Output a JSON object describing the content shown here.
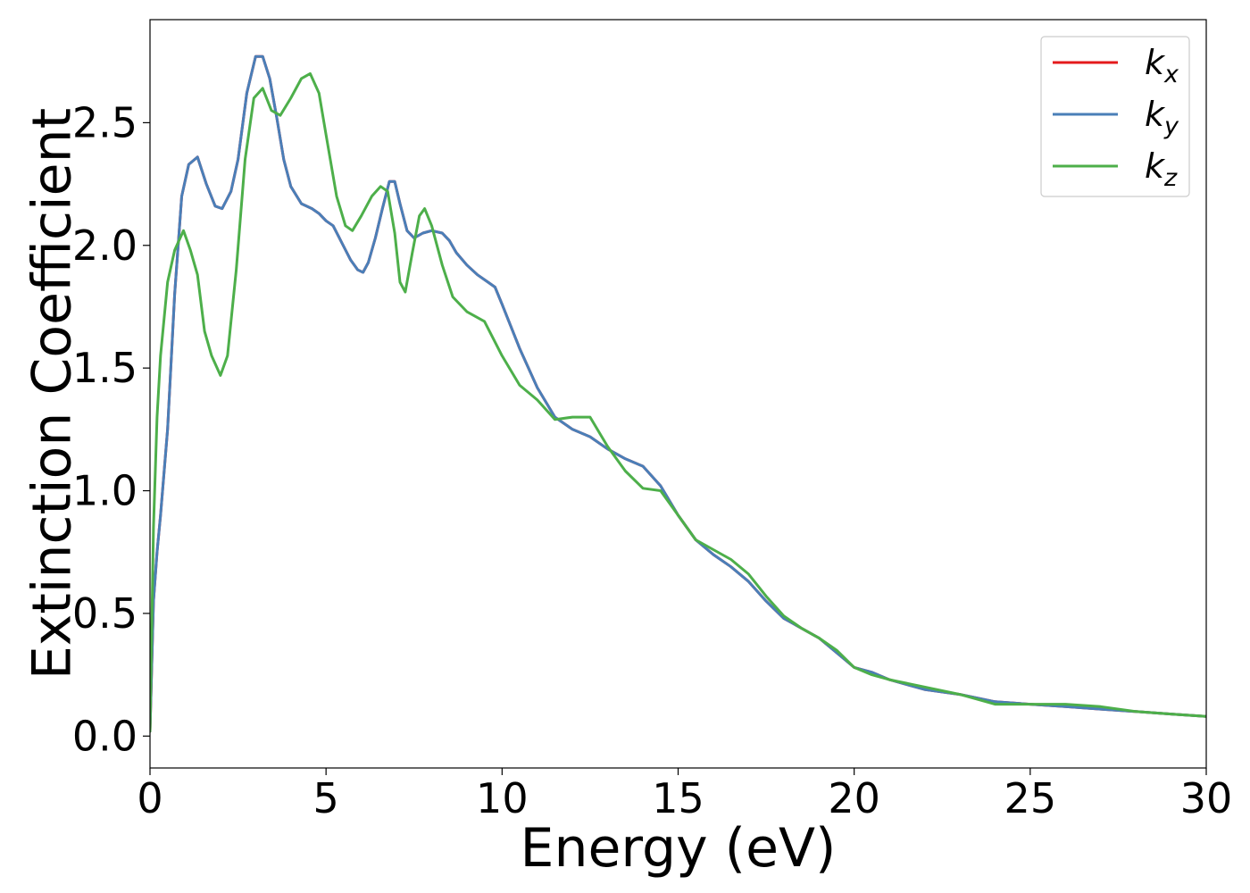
{
  "chart_data": {
    "type": "line",
    "title": "",
    "xlabel": "Energy (eV)",
    "ylabel": "Extinction Coefficient",
    "xlim": [
      0,
      30
    ],
    "ylim": [
      -0.13,
      2.92
    ],
    "xticks": [
      0,
      5,
      10,
      15,
      20,
      25,
      30
    ],
    "xtick_labels": [
      "0",
      "5",
      "10",
      "15",
      "20",
      "25",
      "30"
    ],
    "yticks": [
      0.0,
      0.5,
      1.0,
      1.5,
      2.0,
      2.5
    ],
    "ytick_labels": [
      "0.0",
      "0.5",
      "1.0",
      "1.5",
      "2.0",
      "2.5"
    ],
    "grid": false,
    "legend_position": "top-right",
    "series": [
      {
        "name": "k_x",
        "label_main": "k",
        "label_sub": "x",
        "color": "#e41a1c",
        "x": [
          0,
          0.1,
          0.2,
          0.3,
          0.5,
          0.7,
          0.9,
          1.1,
          1.35,
          1.6,
          1.85,
          2.05,
          2.3,
          2.5,
          2.75,
          3.0,
          3.2,
          3.4,
          3.6,
          3.8,
          4.0,
          4.3,
          4.6,
          4.8,
          5.0,
          5.2,
          5.45,
          5.7,
          5.9,
          6.05,
          6.2,
          6.4,
          6.6,
          6.8,
          6.95,
          7.1,
          7.3,
          7.5,
          7.75,
          8.0,
          8.3,
          8.5,
          8.7,
          9.0,
          9.3,
          9.6,
          9.8,
          10.0,
          10.5,
          11.0,
          11.5,
          12.0,
          12.5,
          13.0,
          13.5,
          14.0,
          14.5,
          15.0,
          15.5,
          16.0,
          16.5,
          17.0,
          17.5,
          18.0,
          18.5,
          19.0,
          19.5,
          20.0,
          20.5,
          21.0,
          22.0,
          23.0,
          24.0,
          25.0,
          26.0,
          27.0,
          28.0,
          29.0,
          30.0
        ],
        "y": [
          0.02,
          0.55,
          0.75,
          0.9,
          1.25,
          1.8,
          2.2,
          2.33,
          2.36,
          2.25,
          2.16,
          2.15,
          2.22,
          2.35,
          2.62,
          2.77,
          2.77,
          2.68,
          2.52,
          2.35,
          2.24,
          2.17,
          2.15,
          2.13,
          2.1,
          2.08,
          2.01,
          1.94,
          1.9,
          1.89,
          1.93,
          2.03,
          2.15,
          2.26,
          2.26,
          2.17,
          2.06,
          2.03,
          2.05,
          2.06,
          2.05,
          2.02,
          1.97,
          1.92,
          1.88,
          1.85,
          1.83,
          1.76,
          1.58,
          1.42,
          1.3,
          1.25,
          1.22,
          1.17,
          1.13,
          1.1,
          1.02,
          0.9,
          0.8,
          0.74,
          0.69,
          0.63,
          0.55,
          0.48,
          0.44,
          0.4,
          0.34,
          0.28,
          0.26,
          0.23,
          0.19,
          0.17,
          0.14,
          0.13,
          0.12,
          0.11,
          0.1,
          0.09,
          0.08
        ]
      },
      {
        "name": "k_y",
        "label_main": "k",
        "label_sub": "y",
        "color": "#4a7fb8",
        "x": [
          0,
          0.1,
          0.2,
          0.3,
          0.5,
          0.7,
          0.9,
          1.1,
          1.35,
          1.6,
          1.85,
          2.05,
          2.3,
          2.5,
          2.75,
          3.0,
          3.2,
          3.4,
          3.6,
          3.8,
          4.0,
          4.3,
          4.6,
          4.8,
          5.0,
          5.2,
          5.45,
          5.7,
          5.9,
          6.05,
          6.2,
          6.4,
          6.6,
          6.8,
          6.95,
          7.1,
          7.3,
          7.5,
          7.75,
          8.0,
          8.3,
          8.5,
          8.7,
          9.0,
          9.3,
          9.6,
          9.8,
          10.0,
          10.5,
          11.0,
          11.5,
          12.0,
          12.5,
          13.0,
          13.5,
          14.0,
          14.5,
          15.0,
          15.5,
          16.0,
          16.5,
          17.0,
          17.5,
          18.0,
          18.5,
          19.0,
          19.5,
          20.0,
          20.5,
          21.0,
          22.0,
          23.0,
          24.0,
          25.0,
          26.0,
          27.0,
          28.0,
          29.0,
          30.0
        ],
        "y": [
          0.02,
          0.55,
          0.75,
          0.9,
          1.25,
          1.8,
          2.2,
          2.33,
          2.36,
          2.25,
          2.16,
          2.15,
          2.22,
          2.35,
          2.62,
          2.77,
          2.77,
          2.68,
          2.52,
          2.35,
          2.24,
          2.17,
          2.15,
          2.13,
          2.1,
          2.08,
          2.01,
          1.94,
          1.9,
          1.89,
          1.93,
          2.03,
          2.15,
          2.26,
          2.26,
          2.17,
          2.06,
          2.03,
          2.05,
          2.06,
          2.05,
          2.02,
          1.97,
          1.92,
          1.88,
          1.85,
          1.83,
          1.76,
          1.58,
          1.42,
          1.3,
          1.25,
          1.22,
          1.17,
          1.13,
          1.1,
          1.02,
          0.9,
          0.8,
          0.74,
          0.69,
          0.63,
          0.55,
          0.48,
          0.44,
          0.4,
          0.34,
          0.28,
          0.26,
          0.23,
          0.19,
          0.17,
          0.14,
          0.13,
          0.12,
          0.11,
          0.1,
          0.09,
          0.08
        ]
      },
      {
        "name": "k_z",
        "label_main": "k",
        "label_sub": "z",
        "color": "#4daf4a",
        "x": [
          0,
          0.1,
          0.2,
          0.3,
          0.5,
          0.7,
          0.95,
          1.15,
          1.35,
          1.55,
          1.75,
          2.0,
          2.2,
          2.45,
          2.7,
          2.95,
          3.2,
          3.45,
          3.7,
          4.0,
          4.3,
          4.55,
          4.8,
          5.0,
          5.3,
          5.55,
          5.75,
          6.0,
          6.3,
          6.55,
          6.75,
          6.95,
          7.1,
          7.25,
          7.45,
          7.65,
          7.8,
          8.0,
          8.3,
          8.6,
          9.0,
          9.5,
          10.0,
          10.5,
          11.0,
          11.5,
          12.0,
          12.5,
          13.0,
          13.5,
          14.0,
          14.5,
          15.0,
          15.5,
          16.0,
          16.5,
          17.0,
          17.5,
          18.0,
          18.5,
          19.0,
          19.5,
          20.0,
          20.5,
          21.0,
          22.0,
          23.0,
          24.0,
          25.0,
          26.0,
          27.0,
          28.0,
          29.0,
          30.0
        ],
        "y": [
          0.02,
          0.85,
          1.3,
          1.55,
          1.85,
          1.98,
          2.06,
          1.98,
          1.88,
          1.65,
          1.55,
          1.47,
          1.55,
          1.9,
          2.35,
          2.6,
          2.64,
          2.55,
          2.53,
          2.6,
          2.68,
          2.7,
          2.62,
          2.45,
          2.2,
          2.08,
          2.06,
          2.12,
          2.2,
          2.24,
          2.22,
          2.05,
          1.85,
          1.81,
          1.97,
          2.12,
          2.15,
          2.08,
          1.92,
          1.79,
          1.73,
          1.69,
          1.55,
          1.43,
          1.37,
          1.29,
          1.3,
          1.3,
          1.18,
          1.08,
          1.01,
          1.0,
          0.9,
          0.8,
          0.76,
          0.72,
          0.66,
          0.57,
          0.49,
          0.44,
          0.4,
          0.35,
          0.28,
          0.25,
          0.23,
          0.2,
          0.17,
          0.13,
          0.13,
          0.13,
          0.12,
          0.1,
          0.09,
          0.08
        ]
      }
    ]
  }
}
